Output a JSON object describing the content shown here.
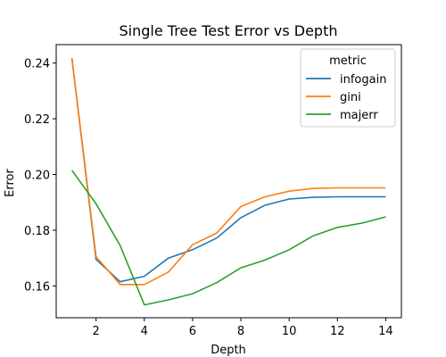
{
  "chart_data": {
    "type": "line",
    "title": "Single Tree Test Error vs Depth",
    "xlabel": "Depth",
    "ylabel": "Error",
    "xlim": [
      0.35,
      14.65
    ],
    "ylim": [
      0.1486,
      0.2466
    ],
    "xticks": [
      2,
      4,
      6,
      8,
      10,
      12,
      14
    ],
    "yticks": [
      0.16,
      0.18,
      0.2,
      0.22,
      0.24
    ],
    "ytick_labels": [
      "0.16",
      "0.18",
      "0.20",
      "0.22",
      "0.24"
    ],
    "legend": {
      "title": "metric",
      "position": "top-right"
    },
    "x": [
      1,
      2,
      3,
      4,
      5,
      6,
      7,
      8,
      9,
      10,
      11,
      12,
      13,
      14
    ],
    "series": [
      {
        "name": "infogain",
        "color": "#1f77b4",
        "values": [
          0.2418,
          0.1695,
          0.1615,
          0.1635,
          0.17,
          0.173,
          0.1772,
          0.1845,
          0.189,
          0.1912,
          0.1918,
          0.192,
          0.192,
          0.192
        ]
      },
      {
        "name": "gini",
        "color": "#ff7f0e",
        "values": [
          0.2418,
          0.1705,
          0.1605,
          0.1605,
          0.165,
          0.1748,
          0.179,
          0.1885,
          0.192,
          0.194,
          0.195,
          0.1952,
          0.1952,
          0.1952
        ]
      },
      {
        "name": "majerr",
        "color": "#2ca02c",
        "values": [
          0.2015,
          0.1895,
          0.1745,
          0.1532,
          0.155,
          0.1572,
          0.1612,
          0.1665,
          0.1693,
          0.173,
          0.178,
          0.181,
          0.1825,
          0.1848
        ]
      }
    ]
  }
}
